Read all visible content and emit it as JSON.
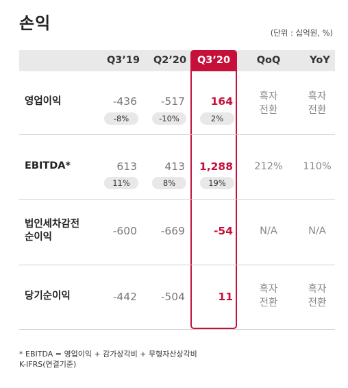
{
  "title": "손익",
  "unit": "(단위 : 십억원, %)",
  "headers": [
    "Q3’19",
    "Q2’20",
    "Q3’20",
    "QoQ",
    "YoY"
  ],
  "rows": [
    {
      "label_lines": [
        "영업이익"
      ],
      "values": [
        "-436",
        "-517",
        "164"
      ],
      "pills": [
        "-8%",
        "-10%",
        "2%"
      ],
      "qoq_lines": [
        "흑자",
        "전환"
      ],
      "yoy_lines": [
        "흑자",
        "전환"
      ]
    },
    {
      "label_lines": [
        "EBITDA*"
      ],
      "values": [
        "613",
        "413",
        "1,288"
      ],
      "pills": [
        "11%",
        "8%",
        "19%"
      ],
      "qoq_lines": [
        "212%"
      ],
      "yoy_lines": [
        "110%"
      ]
    },
    {
      "label_lines": [
        "법인세차감전",
        "순이익"
      ],
      "values": [
        "-600",
        "-669",
        "-54"
      ],
      "pills": [],
      "qoq_lines": [
        "N/A"
      ],
      "yoy_lines": [
        "N/A"
      ]
    },
    {
      "label_lines": [
        "당기순이익"
      ],
      "values": [
        "-442",
        "-504",
        "11"
      ],
      "pills": [],
      "qoq_lines": [
        "흑자",
        "전환"
      ],
      "yoy_lines": [
        "흑자",
        "전환"
      ]
    }
  ],
  "footnotes": [
    "* EBITDA = 영업이익 + 감가상각비 + 무형자산상각비",
    "K-IFRS(연결기준)"
  ],
  "colors": {
    "highlight": "#c6103a",
    "header_bg": "#e9e9e9",
    "pill_bg": "#e8e8e8"
  }
}
